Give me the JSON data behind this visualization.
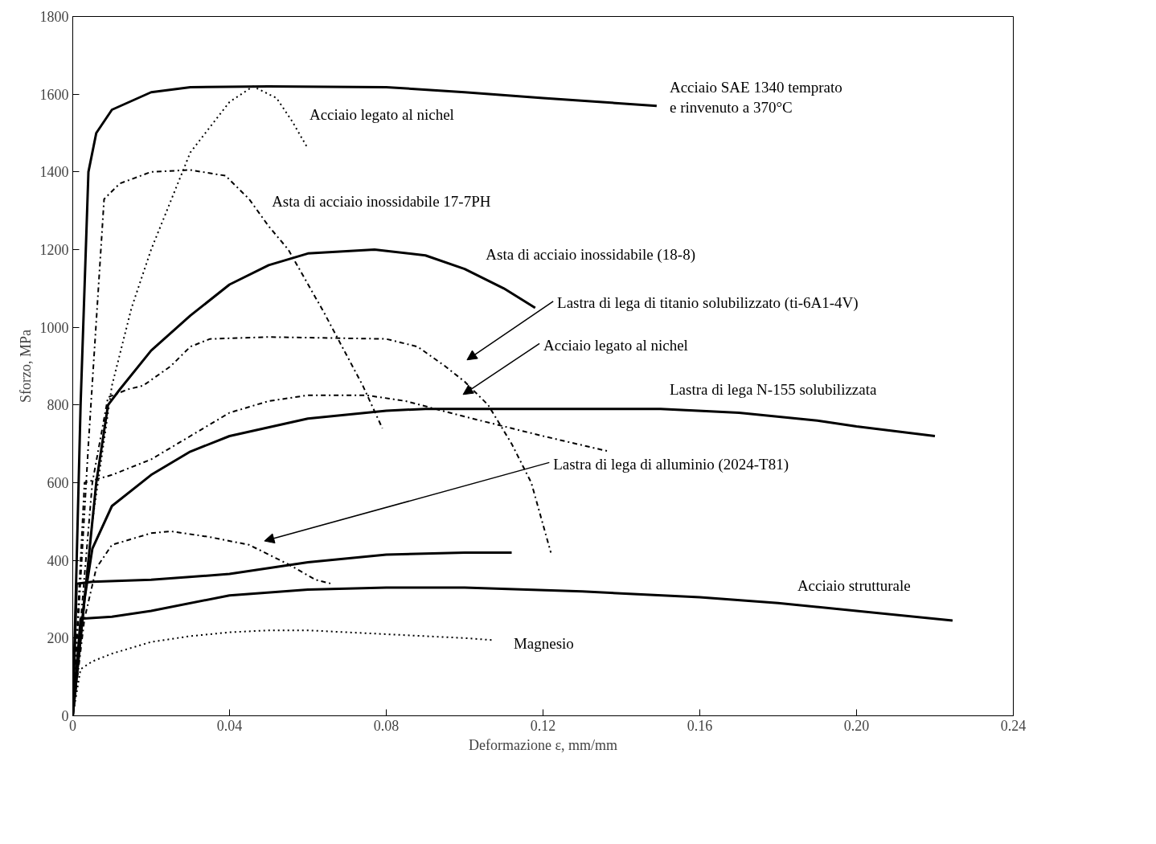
{
  "chart_data": {
    "type": "line",
    "xlabel": "Deformazione ε, mm/mm",
    "ylabel": "Sforzo, MPa",
    "xlim": [
      0,
      0.24
    ],
    "ylim": [
      0,
      1800
    ],
    "xticks": [
      0,
      0.04,
      0.08,
      0.12,
      0.16,
      {
        "value": 0.2,
        "label": "0.20"
      },
      0.24
    ],
    "yticks": [
      0,
      200,
      400,
      600,
      800,
      1000,
      1200,
      1400,
      1600,
      1800
    ],
    "grid": false,
    "legend": false,
    "marker": "none",
    "series": [
      {
        "name": "Acciaio SAE 1340 temprato\ne rinvenuto a 370°C",
        "color": "#000000",
        "line_style": "solid",
        "x": [
          0,
          0.002,
          0.004,
          0.006,
          0.01,
          0.02,
          0.03,
          0.05,
          0.08,
          0.1,
          0.12,
          0.149
        ],
        "values": [
          0,
          800,
          1400,
          1500,
          1560,
          1605,
          1618,
          1620,
          1618,
          1605,
          1590,
          1570
        ]
      },
      {
        "name": "Acciaio legato al nichel",
        "color": "#000000",
        "line_style": "dotted",
        "x": [
          0,
          0.005,
          0.01,
          0.015,
          0.02,
          0.03,
          0.04,
          0.046,
          0.052,
          0.056,
          0.06
        ],
        "values": [
          0,
          500,
          850,
          1050,
          1200,
          1450,
          1580,
          1620,
          1590,
          1530,
          1460
        ]
      },
      {
        "name": "Asta di acciaio inossidabile 17-7PH",
        "color": "#000000",
        "line_style": "dashed",
        "x": [
          0,
          0.004,
          0.008,
          0.012,
          0.02,
          0.03,
          0.039,
          0.045,
          0.05,
          0.055,
          0.064,
          0.074,
          0.079
        ],
        "values": [
          0,
          700,
          1330,
          1370,
          1400,
          1405,
          1390,
          1330,
          1260,
          1200,
          1040,
          850,
          740
        ]
      },
      {
        "name": "Asta di acciaio inossidabile (18-8)",
        "color": "#000000",
        "line_style": "solid",
        "x": [
          0,
          0.003,
          0.006,
          0.009,
          0.012,
          0.02,
          0.03,
          0.04,
          0.05,
          0.06,
          0.077,
          0.09,
          0.1,
          0.11,
          0.118
        ],
        "values": [
          0,
          300,
          600,
          800,
          840,
          940,
          1030,
          1110,
          1160,
          1190,
          1200,
          1185,
          1150,
          1100,
          1050
        ]
      },
      {
        "name": "Lastra di lega di titanio solubilizzato (ti-6A1-4V)",
        "color": "#000000",
        "line_style": "dashed",
        "x": [
          0,
          0.005,
          0.009,
          0.014,
          0.018,
          0.025,
          0.03,
          0.035,
          0.05,
          0.08,
          0.088,
          0.095,
          0.1,
          0.106,
          0.112,
          0.117,
          0.122
        ],
        "values": [
          0,
          600,
          820,
          840,
          850,
          900,
          950,
          970,
          975,
          970,
          950,
          900,
          860,
          800,
          700,
          600,
          420
        ]
      },
      {
        "name": "Acciaio legato al nichel",
        "color": "#000000",
        "line_style": "dashed",
        "x": [
          0,
          0.003,
          0.01,
          0.02,
          0.03,
          0.04,
          0.05,
          0.06,
          0.075,
          0.085,
          0.1,
          0.12,
          0.137
        ],
        "values": [
          0,
          600,
          620,
          660,
          720,
          780,
          810,
          825,
          825,
          810,
          770,
          720,
          680
        ]
      },
      {
        "name": "Lastra di lega N-155 solubilizzata",
        "color": "#000000",
        "line_style": "solid",
        "x": [
          0,
          0.003,
          0.005,
          0.01,
          0.02,
          0.03,
          0.04,
          0.06,
          0.08,
          0.09,
          0.12,
          0.15,
          0.17,
          0.19,
          0.2,
          0.22
        ],
        "values": [
          0,
          300,
          430,
          540,
          620,
          680,
          720,
          765,
          785,
          790,
          790,
          790,
          780,
          760,
          745,
          720
        ]
      },
      {
        "name": "Lastra di lega di alluminio (2024-T81)",
        "color": "#000000",
        "line_style": "dashed",
        "x": [
          0,
          0.003,
          0.006,
          0.01,
          0.02,
          0.025,
          0.035,
          0.045,
          0.055,
          0.062,
          0.066
        ],
        "values": [
          0,
          250,
          380,
          440,
          470,
          475,
          460,
          440,
          390,
          350,
          340
        ]
      },
      {
        "color": "#000000",
        "line_style": "solid",
        "x": [
          0,
          0.001,
          0.005,
          0.02,
          0.04,
          0.06,
          0.08,
          0.1,
          0.112
        ],
        "values": [
          0,
          340,
          345,
          350,
          365,
          395,
          415,
          420,
          420
        ]
      },
      {
        "name": "Acciaio strutturale",
        "color": "#000000",
        "line_style": "solid",
        "x": [
          0,
          0.002,
          0.01,
          0.02,
          0.04,
          0.06,
          0.08,
          0.1,
          0.13,
          0.16,
          0.18,
          0.2,
          0.2245
        ],
        "values": [
          0,
          250,
          255,
          270,
          310,
          325,
          330,
          330,
          320,
          305,
          290,
          270,
          245
        ]
      },
      {
        "name": "Magnesio",
        "color": "#000000",
        "line_style": "dotted",
        "x": [
          0,
          0.002,
          0.005,
          0.01,
          0.02,
          0.03,
          0.04,
          0.05,
          0.06,
          0.07,
          0.08,
          0.09,
          0.1,
          0.107
        ],
        "values": [
          0,
          120,
          140,
          160,
          190,
          205,
          215,
          220,
          220,
          215,
          210,
          205,
          200,
          195
        ]
      }
    ]
  }
}
